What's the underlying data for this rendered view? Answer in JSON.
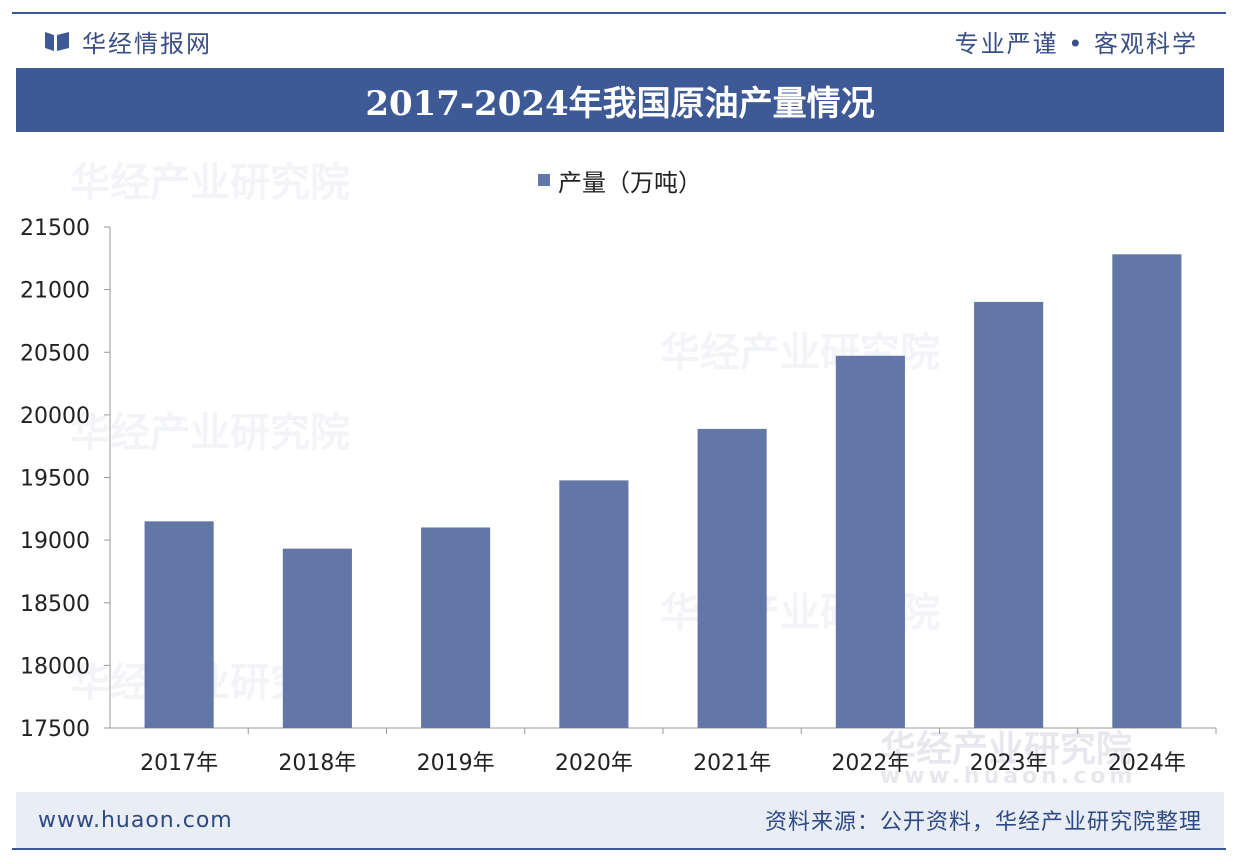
{
  "header": {
    "brand_name": "华经情报网",
    "slogan": "专业严谨 • 客观科学"
  },
  "title": "2017-2024年我国原油产量情况",
  "chart_data": {
    "type": "bar",
    "categories": [
      "2017年",
      "2018年",
      "2019年",
      "2020年",
      "2021年",
      "2022年",
      "2023年",
      "2024年"
    ],
    "series": [
      {
        "name": "产量（万吨）",
        "values": [
          19150,
          18932,
          19101,
          19477,
          19888,
          20472,
          20902,
          21282
        ]
      }
    ],
    "ylim": [
      17500,
      21500
    ],
    "yticks": [
      17500,
      18000,
      18500,
      19000,
      19500,
      20000,
      20500,
      21000,
      21500
    ],
    "legend_position": "top-center",
    "grid": false,
    "bar_color": "#6277a7"
  },
  "footer": {
    "url": "www.huaon.com",
    "source": "资料来源：公开资料，华经产业研究院整理"
  },
  "watermark": {
    "text": "华经产业研究院",
    "url": "www.huaon.com"
  },
  "colors": {
    "brand": "#3d5a96",
    "footer_bg": "#e9edf5"
  }
}
